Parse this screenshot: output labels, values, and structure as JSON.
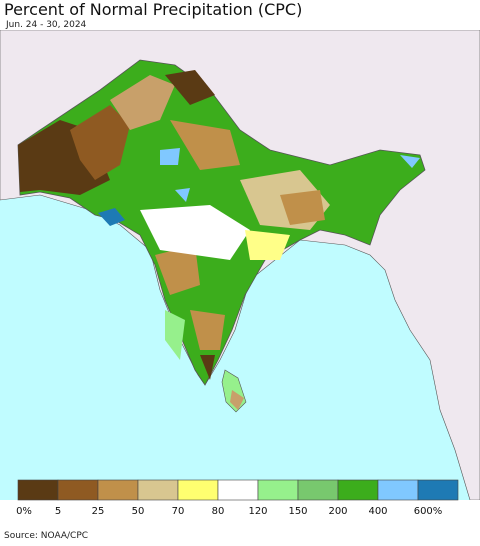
{
  "title": "Percent of Normal Precipitation (CPC)",
  "subtitle": "Jun. 24 - 30, 2024",
  "legend": {
    "colors": [
      "#5a3a14",
      "#8f5a22",
      "#c0904a",
      "#d8c690",
      "#ffff70",
      "#ffffff",
      "#96f08c",
      "#78c86e",
      "#3cad1c",
      "#80c8ff",
      "#1e7ab4"
    ],
    "labels": [
      "0%",
      "5",
      "25",
      "50",
      "70",
      "80",
      "120",
      "150",
      "200",
      "400",
      "600%"
    ]
  },
  "source": "Source: NOAA/CPC"
}
